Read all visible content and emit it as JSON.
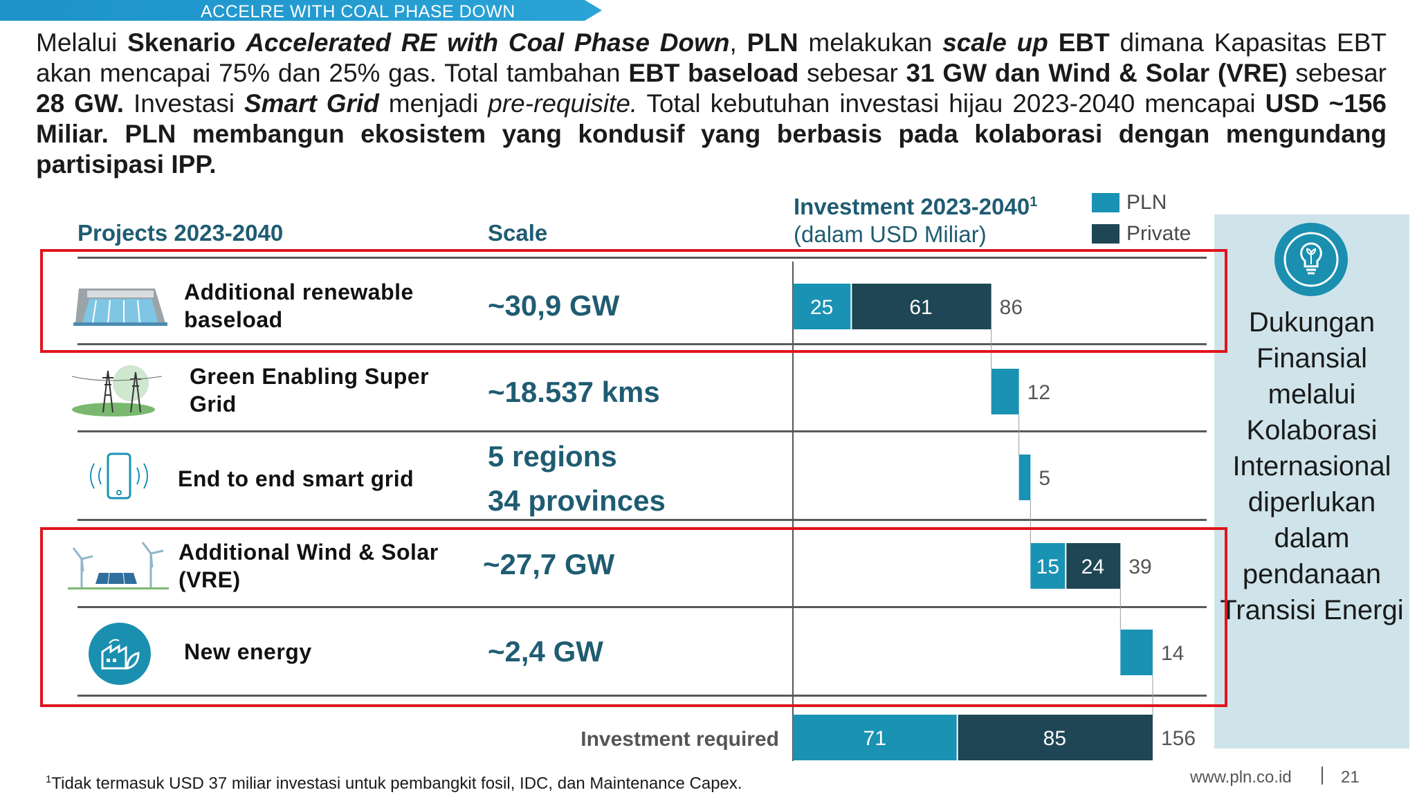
{
  "banner": {
    "title": "ACCELRE WITH COAL PHASE DOWN"
  },
  "intro": {
    "seg": [
      "Melalui ",
      "Skenario ",
      "Accelerated RE with Coal Phase Down",
      ", ",
      "PLN",
      " melakukan ",
      "scale up",
      " ",
      "EBT",
      " dimana Kapasitas EBT akan mencapai 75% dan 25% gas. Total tambahan ",
      "EBT baseload",
      " sebesar ",
      "31 GW dan Wind & Solar (VRE)",
      " sebesar ",
      "28 GW.",
      " Investasi ",
      "Smart Grid",
      " menjadi ",
      "pre-requisite.",
      " Total kebutuhan investasi hijau 2023-2040 mencapai ",
      "USD ~156 Miliar. PLN membangun ekosistem yang kondusif yang berbasis pada kolaborasi dengan mengundang partisipasi IPP."
    ]
  },
  "headers": {
    "projects": "Projects 2023-2040",
    "scale": "Scale",
    "investment": "Investment 2023-2040",
    "investment_sup": "1",
    "investment_unit": "(dalam USD Miliar)"
  },
  "legend": [
    {
      "label": "PLN",
      "color": "#1a92b3"
    },
    {
      "label": "Private",
      "color": "#1e4654"
    }
  ],
  "rows": [
    {
      "project": "Additional renewable baseload",
      "scale": "~30,9 GW",
      "icon": "hydro-dam-icon"
    },
    {
      "project": "Green Enabling Super Grid",
      "scale": "~18.537 kms",
      "icon": "transmission-tower-icon"
    },
    {
      "project": "End to end smart grid",
      "scale": "5 regions",
      "scale2": "34 provinces",
      "icon": "smartphone-signal-icon"
    },
    {
      "project": "Additional Wind & Solar (VRE)",
      "scale": "~27,7 GW",
      "icon": "wind-solar-icon"
    },
    {
      "project": "New energy",
      "scale": "~2,4 GW",
      "icon": "factory-leaf-icon"
    }
  ],
  "chart_data": {
    "type": "bar",
    "orientation": "horizontal-waterfall",
    "title": "Investment 2023-2040",
    "ylabel": "(dalam USD Miliar)",
    "categories": [
      "Additional renewable baseload",
      "Green Enabling Super Grid",
      "End to end smart grid",
      "Additional Wind & Solar (VRE)",
      "New energy",
      "Investment required"
    ],
    "series": [
      {
        "name": "PLN",
        "values": [
          25,
          12,
          5,
          15,
          14,
          71
        ]
      },
      {
        "name": "Private",
        "values": [
          61,
          0,
          0,
          24,
          0,
          85
        ]
      }
    ],
    "totals": [
      86,
      12,
      5,
      39,
      14,
      156
    ],
    "xlim": [
      0,
      156
    ],
    "legend": "top-right"
  },
  "side_panel": {
    "text": "Dukungan Finansial melalui Kolaborasi Internasional diperlukan dalam pendanaan Transisi Energi",
    "icon": "lightbulb-leaf-icon"
  },
  "total_label": "Investment required",
  "footer": {
    "note_sup": "1",
    "note": "Tidak termasuk USD 37 miliar investasi untuk pembangkit fosil, IDC, dan Maintenance Capex.",
    "url": "www.pln.co.id",
    "page": "21"
  },
  "colors": {
    "pln": "#1a92b3",
    "private": "#1e4654",
    "header": "#1f5c72",
    "highlight": "#e0141d",
    "panel": "#cfe3ea"
  }
}
